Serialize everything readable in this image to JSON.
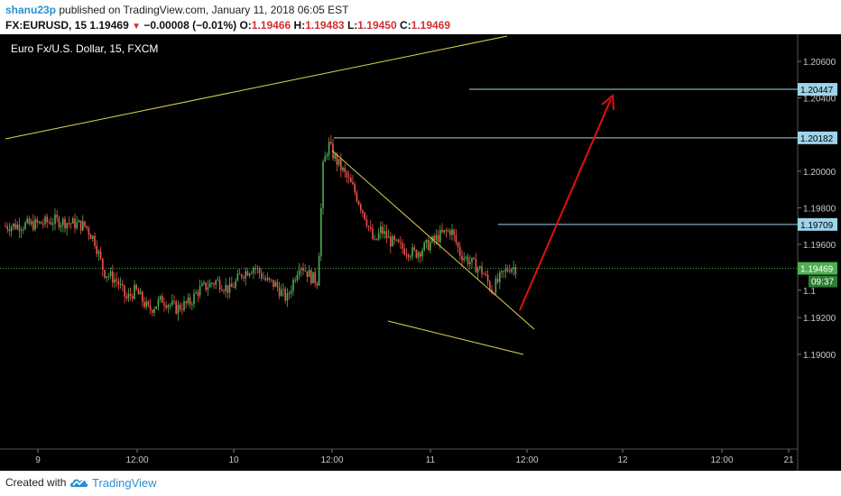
{
  "header": {
    "user": "shanu23p",
    "published_text": "published on TradingView.com, January 11, 2018 06:05 EST",
    "symbol_interval": "FX:EURUSD, 15",
    "last": "1.19469",
    "change": "−0.00008 (−0.01%)",
    "o_label": "O:",
    "o_value": "1.19466",
    "h_label": "H:",
    "h_value": "1.19483",
    "l_label": "L:",
    "l_value": "1.19450",
    "c_label": "C:",
    "c_value": "1.19469"
  },
  "chart": {
    "legend_title": "Euro Fx/U.S. Dollar, 15, FXCM",
    "price_axis": {
      "min": 1.1885,
      "max": 1.2075,
      "ticks": [
        {
          "label": "1.20600",
          "value": 1.206
        },
        {
          "label": "1.20400",
          "value": 1.204
        },
        {
          "label": "1.20000",
          "value": 1.2
        },
        {
          "label": "1.19800",
          "value": 1.198
        },
        {
          "label": "1.19600",
          "value": 1.196
        },
        {
          "label": "1.1",
          "value": 1.1935
        },
        {
          "label": "1.19200",
          "value": 1.192
        },
        {
          "label": "1.19000",
          "value": 1.19
        }
      ]
    },
    "time_ticks": [
      "9",
      "12:00",
      "10",
      "12:00",
      "11",
      "12:00",
      "12",
      "12:00",
      "21"
    ],
    "levels": [
      {
        "label": "1.20447",
        "value": 1.20447
      },
      {
        "label": "1.20182",
        "value": 1.20182
      },
      {
        "label": "1.19709",
        "value": 1.19709
      }
    ],
    "current_price": {
      "label": "1.19469",
      "value": 1.19469,
      "countdown": "09:37"
    },
    "colors": {
      "up": "#4caf50",
      "down": "#ef5350",
      "trend": "#e0d84a",
      "level": "#9ed3ea",
      "arrow": "#e01010",
      "current": "#4caf50"
    }
  },
  "footer": {
    "created_with": "Created with",
    "brand": "TradingView",
    "logo_icon": "tradingview-cloud-icon"
  }
}
